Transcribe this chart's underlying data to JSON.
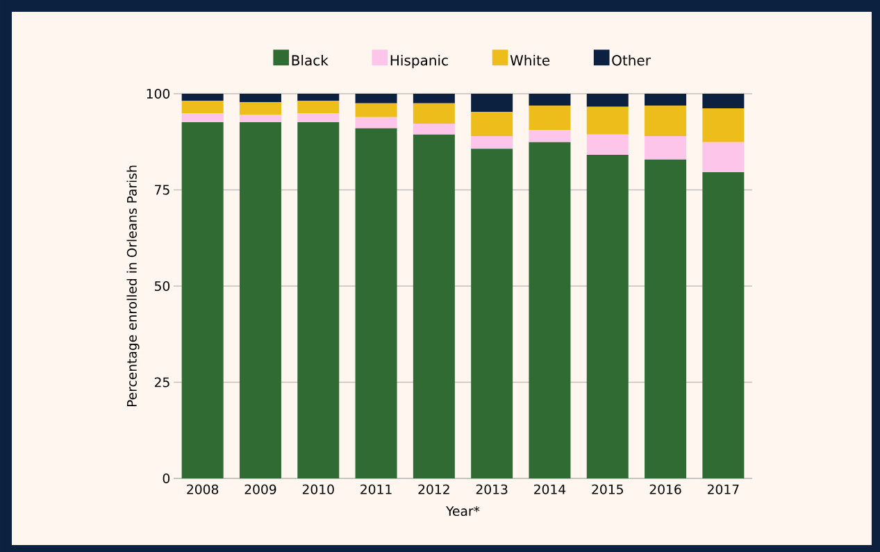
{
  "chart_data": {
    "type": "bar",
    "stacked": true,
    "xlabel": "Year*",
    "ylabel": "Percentage enrolled in Orleans Parish",
    "categories": [
      "2008",
      "2009",
      "2010",
      "2011",
      "2012",
      "2013",
      "2014",
      "2015",
      "2016",
      "2017"
    ],
    "series": [
      {
        "name": "Black",
        "color": "#306b34",
        "values": [
          92.6,
          92.6,
          92.6,
          91.0,
          89.4,
          85.7,
          87.4,
          84.1,
          82.9,
          79.6
        ]
      },
      {
        "name": "Hispanic",
        "color": "#fdc5ea",
        "values": [
          2.3,
          2.0,
          2.3,
          2.9,
          2.8,
          3.3,
          3.2,
          5.3,
          6.1,
          7.8
        ]
      },
      {
        "name": "White",
        "color": "#edbd1c",
        "values": [
          3.3,
          3.2,
          3.3,
          3.6,
          5.3,
          6.3,
          6.3,
          7.2,
          7.9,
          8.8
        ]
      },
      {
        "name": "Other",
        "color": "#0c2040",
        "values": [
          1.8,
          2.2,
          1.8,
          2.5,
          2.5,
          4.7,
          3.1,
          3.4,
          3.1,
          3.8
        ]
      }
    ],
    "ylim": [
      0,
      100
    ],
    "yticks": [
      0,
      25,
      50,
      75,
      100
    ],
    "grid": "y",
    "legend": "top"
  }
}
